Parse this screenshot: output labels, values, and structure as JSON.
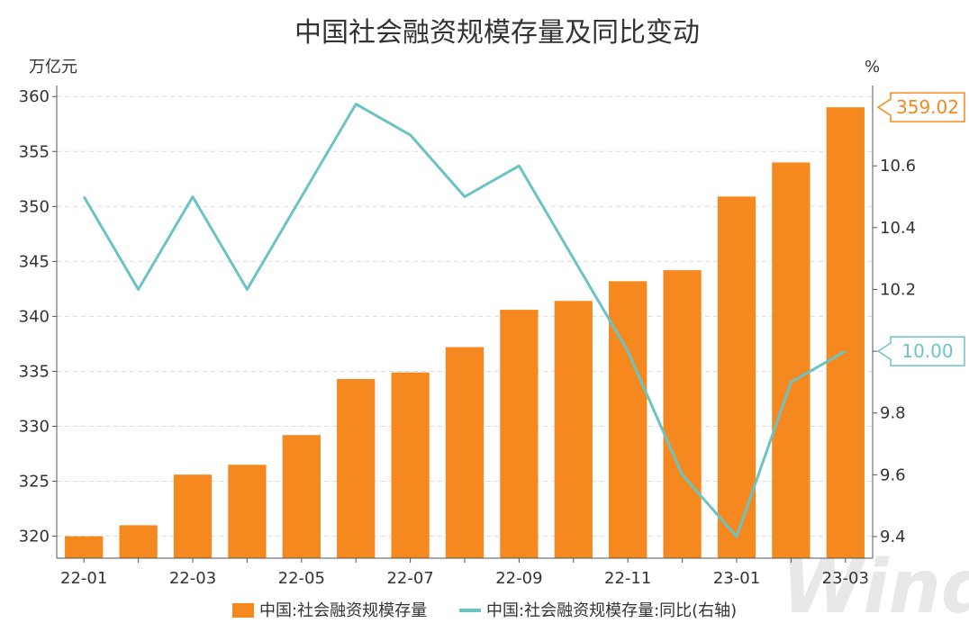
{
  "chart_data": {
    "type": "bar",
    "title": "中国社会融资规模存量及同比变动",
    "y_left_unit": "万亿元",
    "y_right_unit": "%",
    "categories": [
      "22-01",
      "22-02",
      "22-03",
      "22-04",
      "22-05",
      "22-06",
      "22-07",
      "22-08",
      "22-09",
      "22-10",
      "22-11",
      "22-12",
      "23-01",
      "23-02",
      "23-03"
    ],
    "x_tick_labels": [
      "22-01",
      "22-03",
      "22-05",
      "22-07",
      "22-09",
      "22-11",
      "23-01",
      "23-03"
    ],
    "ylim_left": [
      318,
      361
    ],
    "ylim_right": [
      9.33,
      10.86
    ],
    "y_left_ticks": [
      320,
      325,
      330,
      335,
      340,
      345,
      350,
      355,
      360
    ],
    "y_right_ticks": [
      9.4,
      9.6,
      9.8,
      10.0,
      10.2,
      10.4,
      10.6
    ],
    "y_right_tick_labels": [
      "9.4",
      "9.6",
      "9.8",
      "",
      "10.2",
      "10.4",
      "10.6"
    ],
    "grid": true,
    "legend_position": "bottom",
    "series": [
      {
        "name": "中国:社会融资规模存量",
        "type": "bar",
        "axis": "left",
        "color": "#f5891f",
        "values": [
          320.0,
          321.0,
          325.6,
          326.5,
          329.2,
          334.3,
          334.9,
          337.2,
          340.6,
          341.4,
          343.2,
          344.2,
          350.9,
          354.0,
          359.02
        ]
      },
      {
        "name": "中国:社会融资规模存量:同比(右轴)",
        "type": "line",
        "axis": "right",
        "color": "#6cc3c3",
        "values": [
          10.5,
          10.2,
          10.5,
          10.2,
          10.5,
          10.8,
          10.7,
          10.5,
          10.6,
          10.3,
          10.0,
          9.6,
          9.4,
          9.9,
          10.0
        ]
      }
    ],
    "callouts": [
      {
        "series": 0,
        "label": "359.02",
        "color": "#f5891f"
      },
      {
        "series": 1,
        "label": "10.00",
        "color": "#6cc3c3"
      }
    ],
    "watermark": "Wind"
  }
}
